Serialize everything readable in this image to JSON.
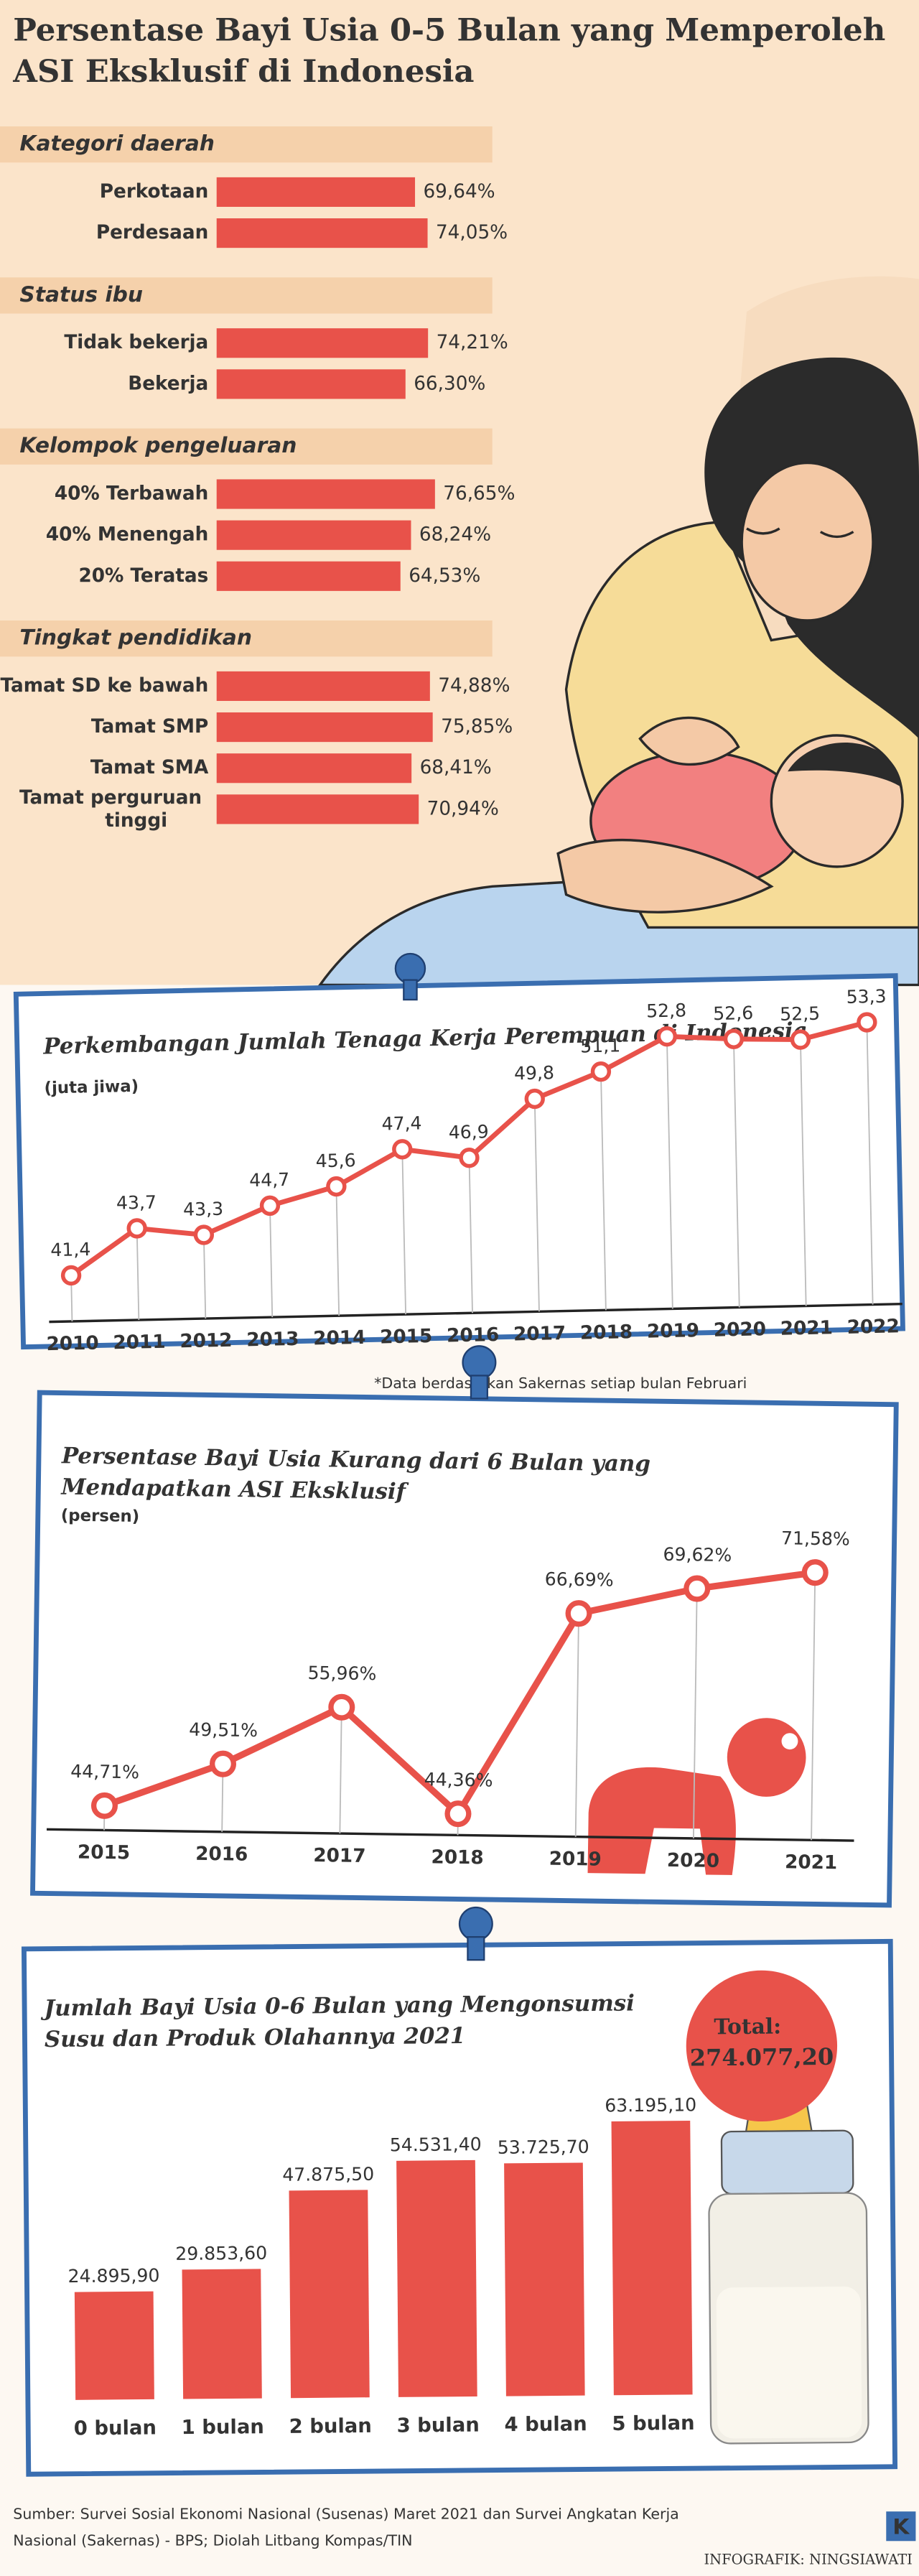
{
  "title": [
    "Persentase Bayi Usia 0-5 Bulan yang Memperoleh",
    "ASI Eksklusif di Indonesia"
  ],
  "chart_data": [
    {
      "type": "bar",
      "orientation": "horizontal",
      "color": "#e8524a",
      "groups": [
        {
          "name": "Kategori daerah",
          "categories": [
            "Perkotaan",
            "Perdesaan"
          ],
          "values": [
            69.64,
            74.05
          ],
          "value_labels": [
            "69,64%",
            "74,05%"
          ]
        },
        {
          "name": "Status ibu",
          "categories": [
            "Tidak bekerja",
            "Bekerja"
          ],
          "values": [
            74.21,
            66.3
          ],
          "value_labels": [
            "74,21%",
            "66,30%"
          ]
        },
        {
          "name": "Kelompok pengeluaran",
          "categories": [
            "40% Terbawah",
            "40% Menengah",
            "20% Teratas"
          ],
          "values": [
            76.65,
            68.24,
            64.53
          ],
          "value_labels": [
            "76,65%",
            "68,24%",
            "64,53%"
          ]
        },
        {
          "name": "Tingkat pendidikan",
          "categories": [
            "Tamat SD ke bawah",
            "Tamat SMP",
            "Tamat SMA",
            "Tamat perguruan tinggi"
          ],
          "values": [
            74.88,
            75.85,
            68.41,
            70.94
          ],
          "value_labels": [
            "74,88%",
            "75,85%",
            "68,41%",
            "70,94%"
          ]
        }
      ]
    },
    {
      "type": "line",
      "title": [
        "Perkembangan Jumlah Tenaga Kerja Perempuan di Indonesia"
      ],
      "unit": "(juta jiwa)",
      "categories": [
        "2010",
        "2011",
        "2012",
        "2013",
        "2014",
        "2015",
        "2016",
        "2017",
        "2018",
        "2019",
        "2020",
        "2021",
        "2022"
      ],
      "values": [
        41.4,
        43.7,
        43.3,
        44.7,
        45.6,
        47.4,
        46.9,
        49.8,
        51.1,
        52.8,
        52.6,
        52.5,
        53.3
      ],
      "value_labels": [
        "41,4",
        "43,7",
        "43,3",
        "44,7",
        "45,6",
        "47,4",
        "46,9",
        "49,8",
        "51,1",
        "52,8",
        "52,6",
        "52,5",
        "53,3"
      ],
      "color": "#e8524a",
      "note": "*Data berdasarkan Sakernas setiap bulan Februari"
    },
    {
      "type": "line",
      "title": [
        "Persentase Bayi Usia Kurang dari 6 Bulan yang",
        "Mendapatkan ASI Eksklusif"
      ],
      "unit": "(persen)",
      "categories": [
        "2015",
        "2016",
        "2017",
        "2018",
        "2019",
        "2020",
        "2021"
      ],
      "values": [
        44.71,
        49.51,
        55.96,
        44.36,
        66.69,
        69.62,
        71.58
      ],
      "value_labels": [
        "44,71%",
        "49,51%",
        "55,96%",
        "44,36%",
        "66,69%",
        "69,62%",
        "71,58%"
      ],
      "color": "#e8524a"
    },
    {
      "type": "bar",
      "orientation": "vertical",
      "title": [
        "Jumlah Bayi Usia 0-6 Bulan yang Mengonsumsi",
        "Susu dan Produk Olahannya 2021"
      ],
      "categories": [
        "0 bulan",
        "1 bulan",
        "2 bulan",
        "3 bulan",
        "4 bulan",
        "5 bulan"
      ],
      "values": [
        24895.9,
        29853.6,
        47875.5,
        54531.4,
        53725.7,
        63195.1
      ],
      "value_labels": [
        "24.895,90",
        "29.853,60",
        "47.875,50",
        "54.531,40",
        "53.725,70",
        "63.195,10"
      ],
      "color": "#e8524a",
      "total": {
        "label": "Total:",
        "value": 274077.2,
        "value_label": "274.077,20"
      }
    }
  ],
  "source": [
    "Sumber: Survei Sosial Ekonomi Nasional (Susenas) Maret 2021 dan Survei Angkatan Kerja",
    "Nasional (Sakernas) - BPS; Diolah Litbang Kompas/TIN"
  ],
  "credit": "INFOGRAFIK: NINGSIAWATI",
  "logo": "K"
}
